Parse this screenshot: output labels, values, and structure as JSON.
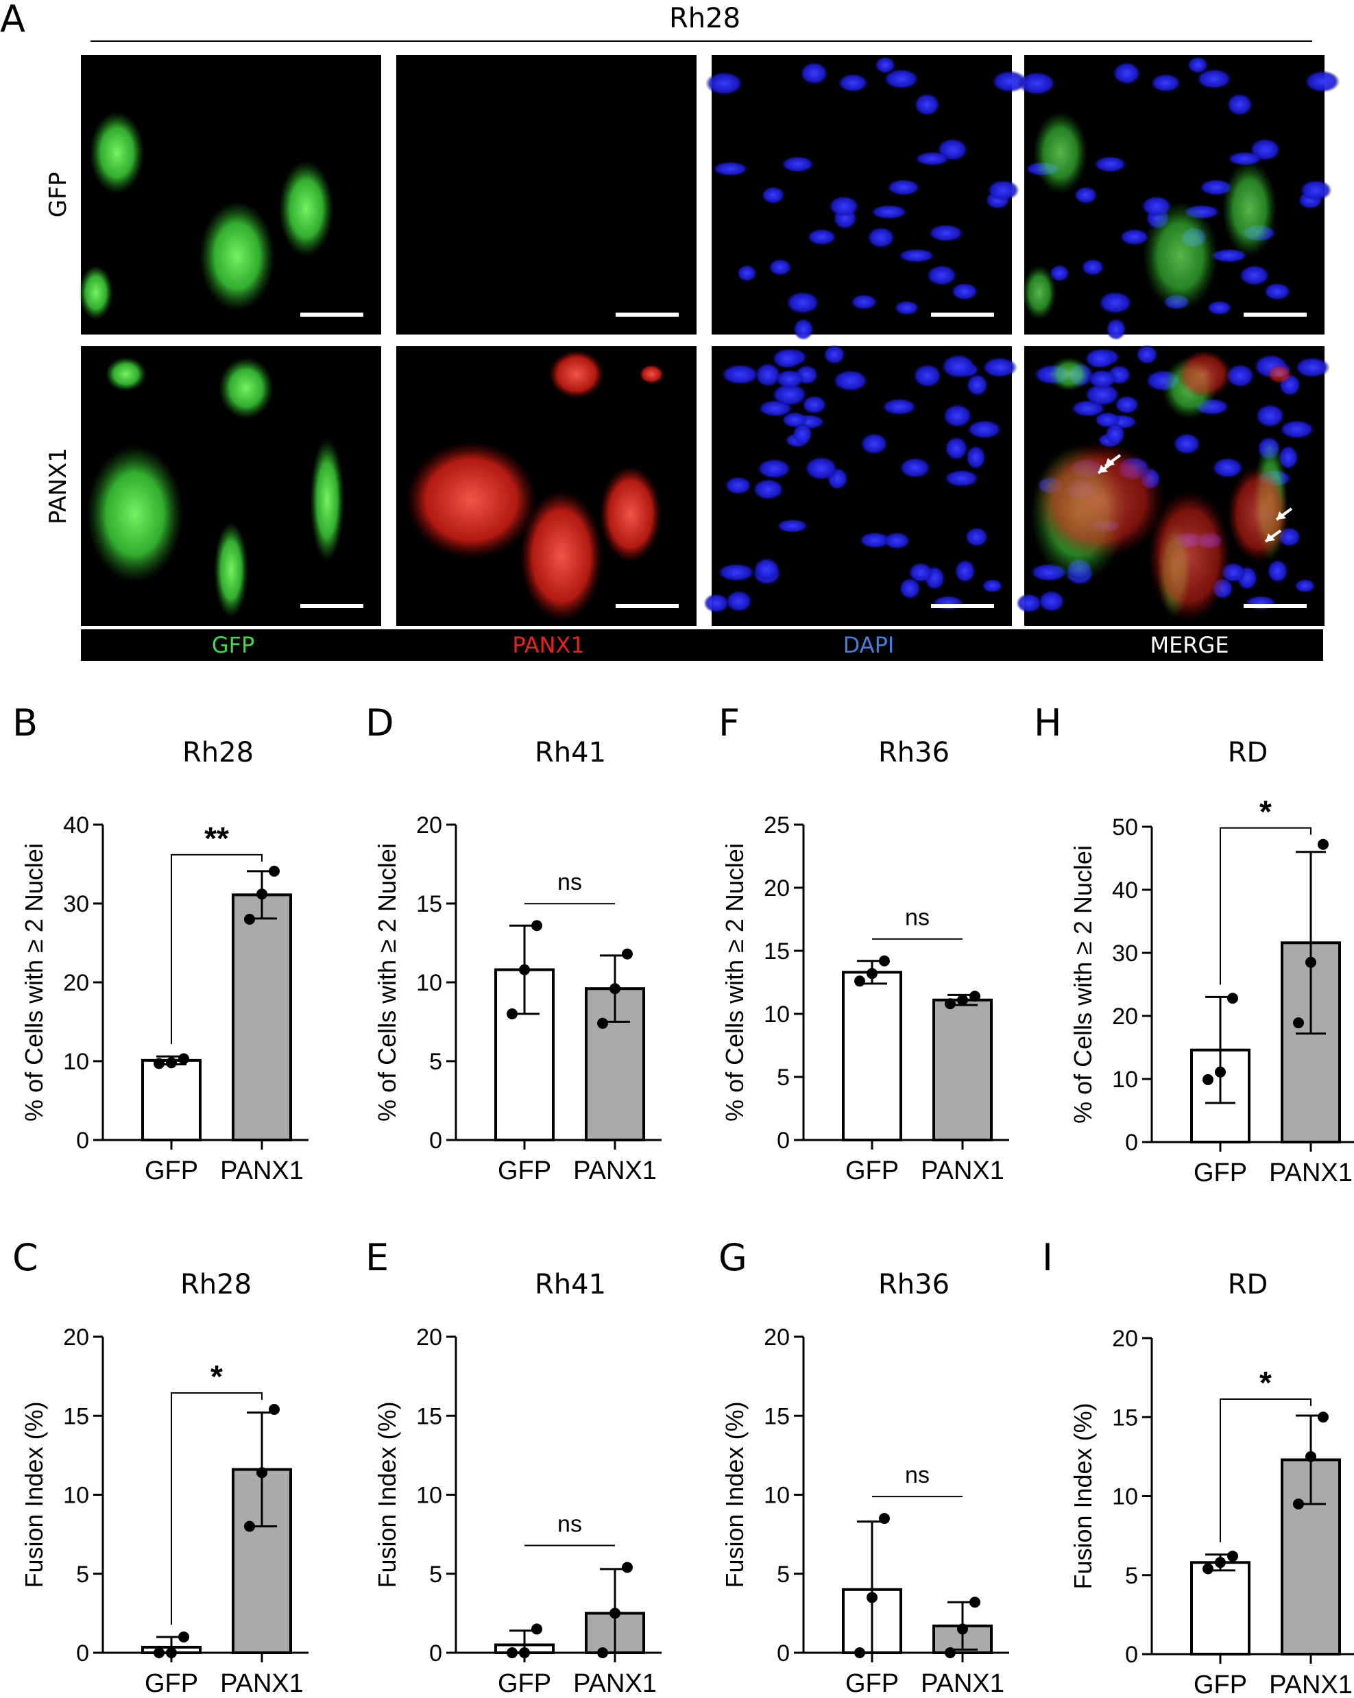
{
  "panelA": {
    "letter": "A",
    "cell_line": "Rh28",
    "rows": [
      {
        "label": "GFP",
        "channels": {
          "gfp": true,
          "panx1": false,
          "dapi": true
        }
      },
      {
        "label": "PANX1",
        "channels": {
          "gfp": true,
          "panx1": true,
          "dapi": true
        }
      }
    ],
    "channels": [
      {
        "label": "GFP",
        "color": "#41d84a"
      },
      {
        "label": "PANX1",
        "color": "#e8221a"
      },
      {
        "label": "DAPI",
        "color": "#3f7fe0"
      },
      {
        "label": "MERGE",
        "color": "#ffffff"
      }
    ]
  },
  "chart_data": [
    {
      "type": "bar",
      "panel": "B",
      "title": "Rh28",
      "ylabel": "% of Cells with ≥ 2 Nuclei",
      "xlabel": "",
      "categories": [
        "GFP",
        "PANX1"
      ],
      "values": [
        10.1,
        31.1
      ],
      "errors": [
        0.5,
        3.0
      ],
      "points": [
        [
          9.7,
          9.8,
          10.3
        ],
        [
          28.0,
          31.2,
          34.1
        ]
      ],
      "ylim": [
        0,
        40
      ],
      "yticks": [
        0,
        10,
        20,
        30,
        40
      ],
      "significance": {
        "label": "**"
      }
    },
    {
      "type": "bar",
      "panel": "C",
      "title": "Rh28",
      "ylabel": "Fusion Index (%)",
      "xlabel": "",
      "categories": [
        "GFP",
        "PANX1"
      ],
      "values": [
        0.35,
        11.6
      ],
      "errors": [
        0.65,
        3.6
      ],
      "points": [
        [
          0.0,
          0.0,
          1.0
        ],
        [
          8.0,
          11.4,
          15.4
        ]
      ],
      "ylim": [
        0,
        20
      ],
      "yticks": [
        0,
        5,
        10,
        15,
        20
      ],
      "significance": {
        "label": "*"
      }
    },
    {
      "type": "bar",
      "panel": "D",
      "title": "Rh41",
      "ylabel": "% of Cells with ≥ 2 Nuclei",
      "xlabel": "",
      "categories": [
        "GFP",
        "PANX1"
      ],
      "values": [
        10.8,
        9.6
      ],
      "errors": [
        2.8,
        2.1
      ],
      "points": [
        [
          8.0,
          10.8,
          13.6
        ],
        [
          7.4,
          9.6,
          11.8
        ]
      ],
      "ylim": [
        0,
        20
      ],
      "yticks": [
        0,
        5,
        10,
        15,
        20
      ],
      "significance": {
        "label": "ns"
      }
    },
    {
      "type": "bar",
      "panel": "E",
      "title": "Rh41",
      "ylabel": "Fusion Index (%)",
      "xlabel": "",
      "categories": [
        "GFP",
        "PANX1"
      ],
      "values": [
        0.5,
        2.5
      ],
      "errors": [
        0.9,
        2.8
      ],
      "points": [
        [
          0.0,
          0.0,
          1.5
        ],
        [
          0.0,
          2.5,
          5.4
        ]
      ],
      "ylim": [
        0,
        20
      ],
      "yticks": [
        0,
        5,
        10,
        15,
        20
      ],
      "significance": {
        "label": "ns"
      }
    },
    {
      "type": "bar",
      "panel": "F",
      "title": "Rh36",
      "ylabel": "% of Cells with ≥ 2 Nuclei",
      "xlabel": "",
      "categories": [
        "GFP",
        "PANX1"
      ],
      "values": [
        13.3,
        11.1
      ],
      "errors": [
        0.9,
        0.4
      ],
      "points": [
        [
          12.6,
          13.2,
          14.2
        ],
        [
          10.8,
          11.1,
          11.4
        ]
      ],
      "ylim": [
        0,
        25
      ],
      "yticks": [
        0,
        5,
        10,
        15,
        20,
        25
      ],
      "significance": {
        "label": "ns"
      }
    },
    {
      "type": "bar",
      "panel": "G",
      "title": "Rh36",
      "ylabel": "Fusion Index (%)",
      "xlabel": "",
      "categories": [
        "GFP",
        "PANX1"
      ],
      "values": [
        4.0,
        1.7
      ],
      "errors": [
        4.3,
        1.5
      ],
      "points": [
        [
          0.0,
          3.5,
          8.5
        ],
        [
          0.0,
          1.5,
          3.2
        ]
      ],
      "ylim": [
        0,
        20
      ],
      "yticks": [
        0,
        5,
        10,
        15,
        20
      ],
      "significance": {
        "label": "ns"
      }
    },
    {
      "type": "bar",
      "panel": "H",
      "title": "RD",
      "ylabel": "% of Cells with ≥ 2 Nuclei",
      "xlabel": "",
      "categories": [
        "GFP",
        "PANX1"
      ],
      "values": [
        14.6,
        31.6
      ],
      "errors": [
        8.4,
        14.4
      ],
      "points": [
        [
          9.9,
          11.1,
          22.8
        ],
        [
          18.9,
          28.5,
          47.2
        ]
      ],
      "ylim": [
        0,
        50
      ],
      "yticks": [
        0,
        10,
        20,
        30,
        40,
        50
      ],
      "significance": {
        "label": "*"
      }
    },
    {
      "type": "bar",
      "panel": "I",
      "title": "RD",
      "ylabel": "Fusion Index (%)",
      "xlabel": "",
      "categories": [
        "GFP",
        "PANX1"
      ],
      "values": [
        5.8,
        12.3
      ],
      "errors": [
        0.5,
        2.8
      ],
      "points": [
        [
          5.4,
          5.8,
          6.2
        ],
        [
          9.5,
          12.5,
          15.0
        ]
      ],
      "ylim": [
        0,
        20
      ],
      "yticks": [
        0,
        5,
        10,
        15,
        20
      ],
      "significance": {
        "label": "*"
      }
    }
  ],
  "colors": {
    "gfp_bar": "#ffffff",
    "panx1_bar": "#aaaaaa",
    "axis": "#000000"
  }
}
